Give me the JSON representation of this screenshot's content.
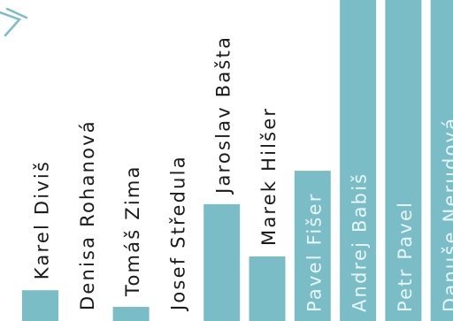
{
  "colors": {
    "bar": "#7bbdc6",
    "label_outside": "#1a1a1a",
    "label_inside": "#e8f6f8",
    "background": "#ffffff"
  },
  "chart_data": {
    "type": "bar",
    "orientation": "vertical",
    "title": "",
    "xlabel": "",
    "ylabel": "",
    "ylim": [
      0,
      100
    ],
    "grid": false,
    "legend": "none",
    "categories": [
      "Karel Diviš",
      "Denisa Rohanová",
      "Tomáš Zima",
      "Josef Středula",
      "Jaroslav Bašta",
      "Marek Hilšer",
      "Pavel Fišer",
      "Andrej Babiš",
      "Petr Pavel",
      "Danuše Nerudová"
    ],
    "values": [
      9.6,
      0.0,
      4.4,
      0.0,
      36.4,
      20.1,
      46.8,
      100.0,
      100.0,
      100.0
    ]
  }
}
